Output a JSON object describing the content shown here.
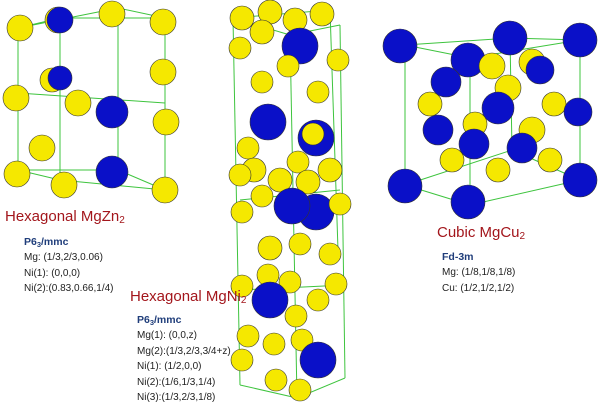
{
  "colors": {
    "mg": "#0a10c8",
    "ni": "#f5e800",
    "frame": "#3ec43e",
    "title": "#a3161c",
    "spacegroup": "#1f3d7a"
  },
  "structures": [
    {
      "name": "Hexagonal MgZn",
      "subscript": "2",
      "spacegroup": "P6",
      "spacegroup_sub": "3",
      "spacegroup_rest": "/mmc",
      "positions": [
        "Mg: (1/3,2/3,0.06)",
        "Ni(1): (0,0,0)",
        "Ni(2):(0.83,0.66,1/4)"
      ]
    },
    {
      "name": "Hexagonal MgNi",
      "subscript": "2",
      "spacegroup": "P6",
      "spacegroup_sub": "3",
      "spacegroup_rest": "/mmc",
      "positions": [
        "Mg(1): (0,0,z)",
        "Mg(2):(1/3,2/3,3/4+z)",
        "Ni(1): (1/2,0,0)",
        "Ni(2):(1/6,1/3,1/4)",
        "Ni(3):(1/3,2/3,1/8)"
      ]
    },
    {
      "name": "Cubic MgCu",
      "subscript": "2",
      "spacegroup": "Fd-3m",
      "spacegroup_sub": "",
      "spacegroup_rest": "",
      "positions": [
        "Mg: (1/8,1/8,1/8)",
        "Cu: (1/2,1/2,1/2)"
      ]
    }
  ]
}
